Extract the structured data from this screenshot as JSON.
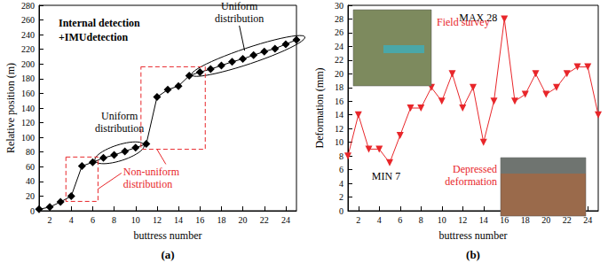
{
  "chart_data": [
    {
      "type": "line",
      "title": "Internal detection\n+IMUdetection",
      "subtitle": "(a)",
      "xlabel": "buttress number",
      "ylabel": "Relative position (m)",
      "x": [
        1,
        2,
        3,
        4,
        5,
        6,
        7,
        8,
        9,
        10,
        11,
        12,
        13,
        14,
        15,
        16,
        17,
        18,
        19,
        20,
        21,
        22,
        23,
        24,
        25
      ],
      "values": [
        2,
        5,
        12,
        20,
        61,
        66,
        72,
        76,
        81,
        86,
        91,
        155,
        165,
        170,
        184,
        189,
        193,
        198,
        203,
        207,
        212,
        217,
        221,
        227,
        233
      ],
      "color": "#000000",
      "marker": "diamond",
      "xlim": [
        1,
        25
      ],
      "xticks": [
        2,
        4,
        6,
        8,
        10,
        12,
        14,
        16,
        18,
        20,
        22,
        24
      ],
      "ylim": [
        0,
        280
      ],
      "yticks": [
        0,
        20,
        40,
        60,
        80,
        100,
        120,
        140,
        160,
        180,
        200,
        220,
        240,
        260,
        280
      ],
      "grid": false,
      "annotations": [
        {
          "text": "Uniform\ndistribution",
          "shape": "ellipse",
          "from": 7,
          "to": 10,
          "color": "#000000"
        },
        {
          "text": "Uniform\ndistribution",
          "shape": "ellipse",
          "from": 16,
          "to": 25,
          "color": "#000000"
        },
        {
          "text": "Non-uniform\ndistribution",
          "shape": "box",
          "targets": [
            [
              4,
              6
            ],
            [
              11,
              16
            ]
          ],
          "color": "#e8262a"
        }
      ]
    },
    {
      "type": "line",
      "subtitle": "(b)",
      "xlabel": "buttress number",
      "ylabel": "Deformation (mm)",
      "x": [
        1,
        2,
        3,
        4,
        5,
        6,
        7,
        8,
        9,
        10,
        11,
        12,
        13,
        14,
        15,
        16,
        17,
        18,
        19,
        20,
        21,
        22,
        23,
        24,
        25
      ],
      "values": [
        8,
        14,
        9,
        9,
        7,
        11,
        15,
        15,
        18,
        16,
        20,
        15,
        18,
        10,
        16,
        28,
        16,
        17,
        20,
        17,
        18,
        20,
        21,
        21,
        14
      ],
      "color": "#e8262a",
      "marker": "triangle-down",
      "xlim": [
        1,
        25
      ],
      "xticks": [
        2,
        4,
        6,
        8,
        10,
        12,
        14,
        16,
        18,
        20,
        22,
        24
      ],
      "ylim": [
        0,
        30
      ],
      "yticks": [
        0,
        2,
        4,
        6,
        8,
        10,
        12,
        14,
        16,
        18,
        20,
        22,
        24,
        26,
        28,
        30
      ],
      "grid": false,
      "annotations": [
        {
          "text": "MAX 28",
          "at": 16,
          "color": "#000000"
        },
        {
          "text": "MIN 7",
          "at": 5,
          "color": "#000000"
        },
        {
          "text": "Field survey",
          "color": "#e8262a"
        },
        {
          "text": "Depressed\ndeformation",
          "color": "#e8262a"
        }
      ]
    }
  ]
}
